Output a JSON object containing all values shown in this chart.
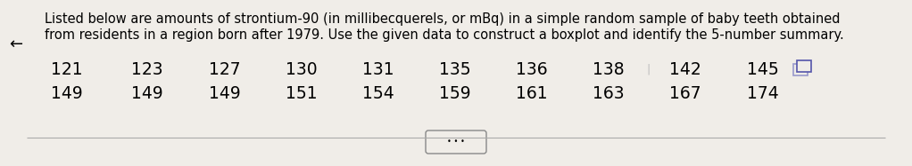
{
  "title_line1": "Listed below are amounts of strontium-90 (in millibecquerels, or mBq) in a simple random sample of baby teeth obtained",
  "title_line2": "from residents in a region born after 1979. Use the given data to construct a boxplot and identify the 5-number summary.",
  "row1": [
    "121",
    "123",
    "127",
    "130",
    "131",
    "135",
    "136",
    "138",
    "142",
    "145"
  ],
  "row2": [
    "149",
    "149",
    "149",
    "151",
    "154",
    "159",
    "161",
    "163",
    "167",
    "174"
  ],
  "background_color": "#f0ede8",
  "text_color": "#000000",
  "font_size_title": 10.5,
  "font_size_data": 13.5,
  "bottom_button_text": "• • •",
  "arrow_left": "←",
  "line_color": "#aaaaaa",
  "button_edge_color": "#888888",
  "separator_color": "#888888"
}
